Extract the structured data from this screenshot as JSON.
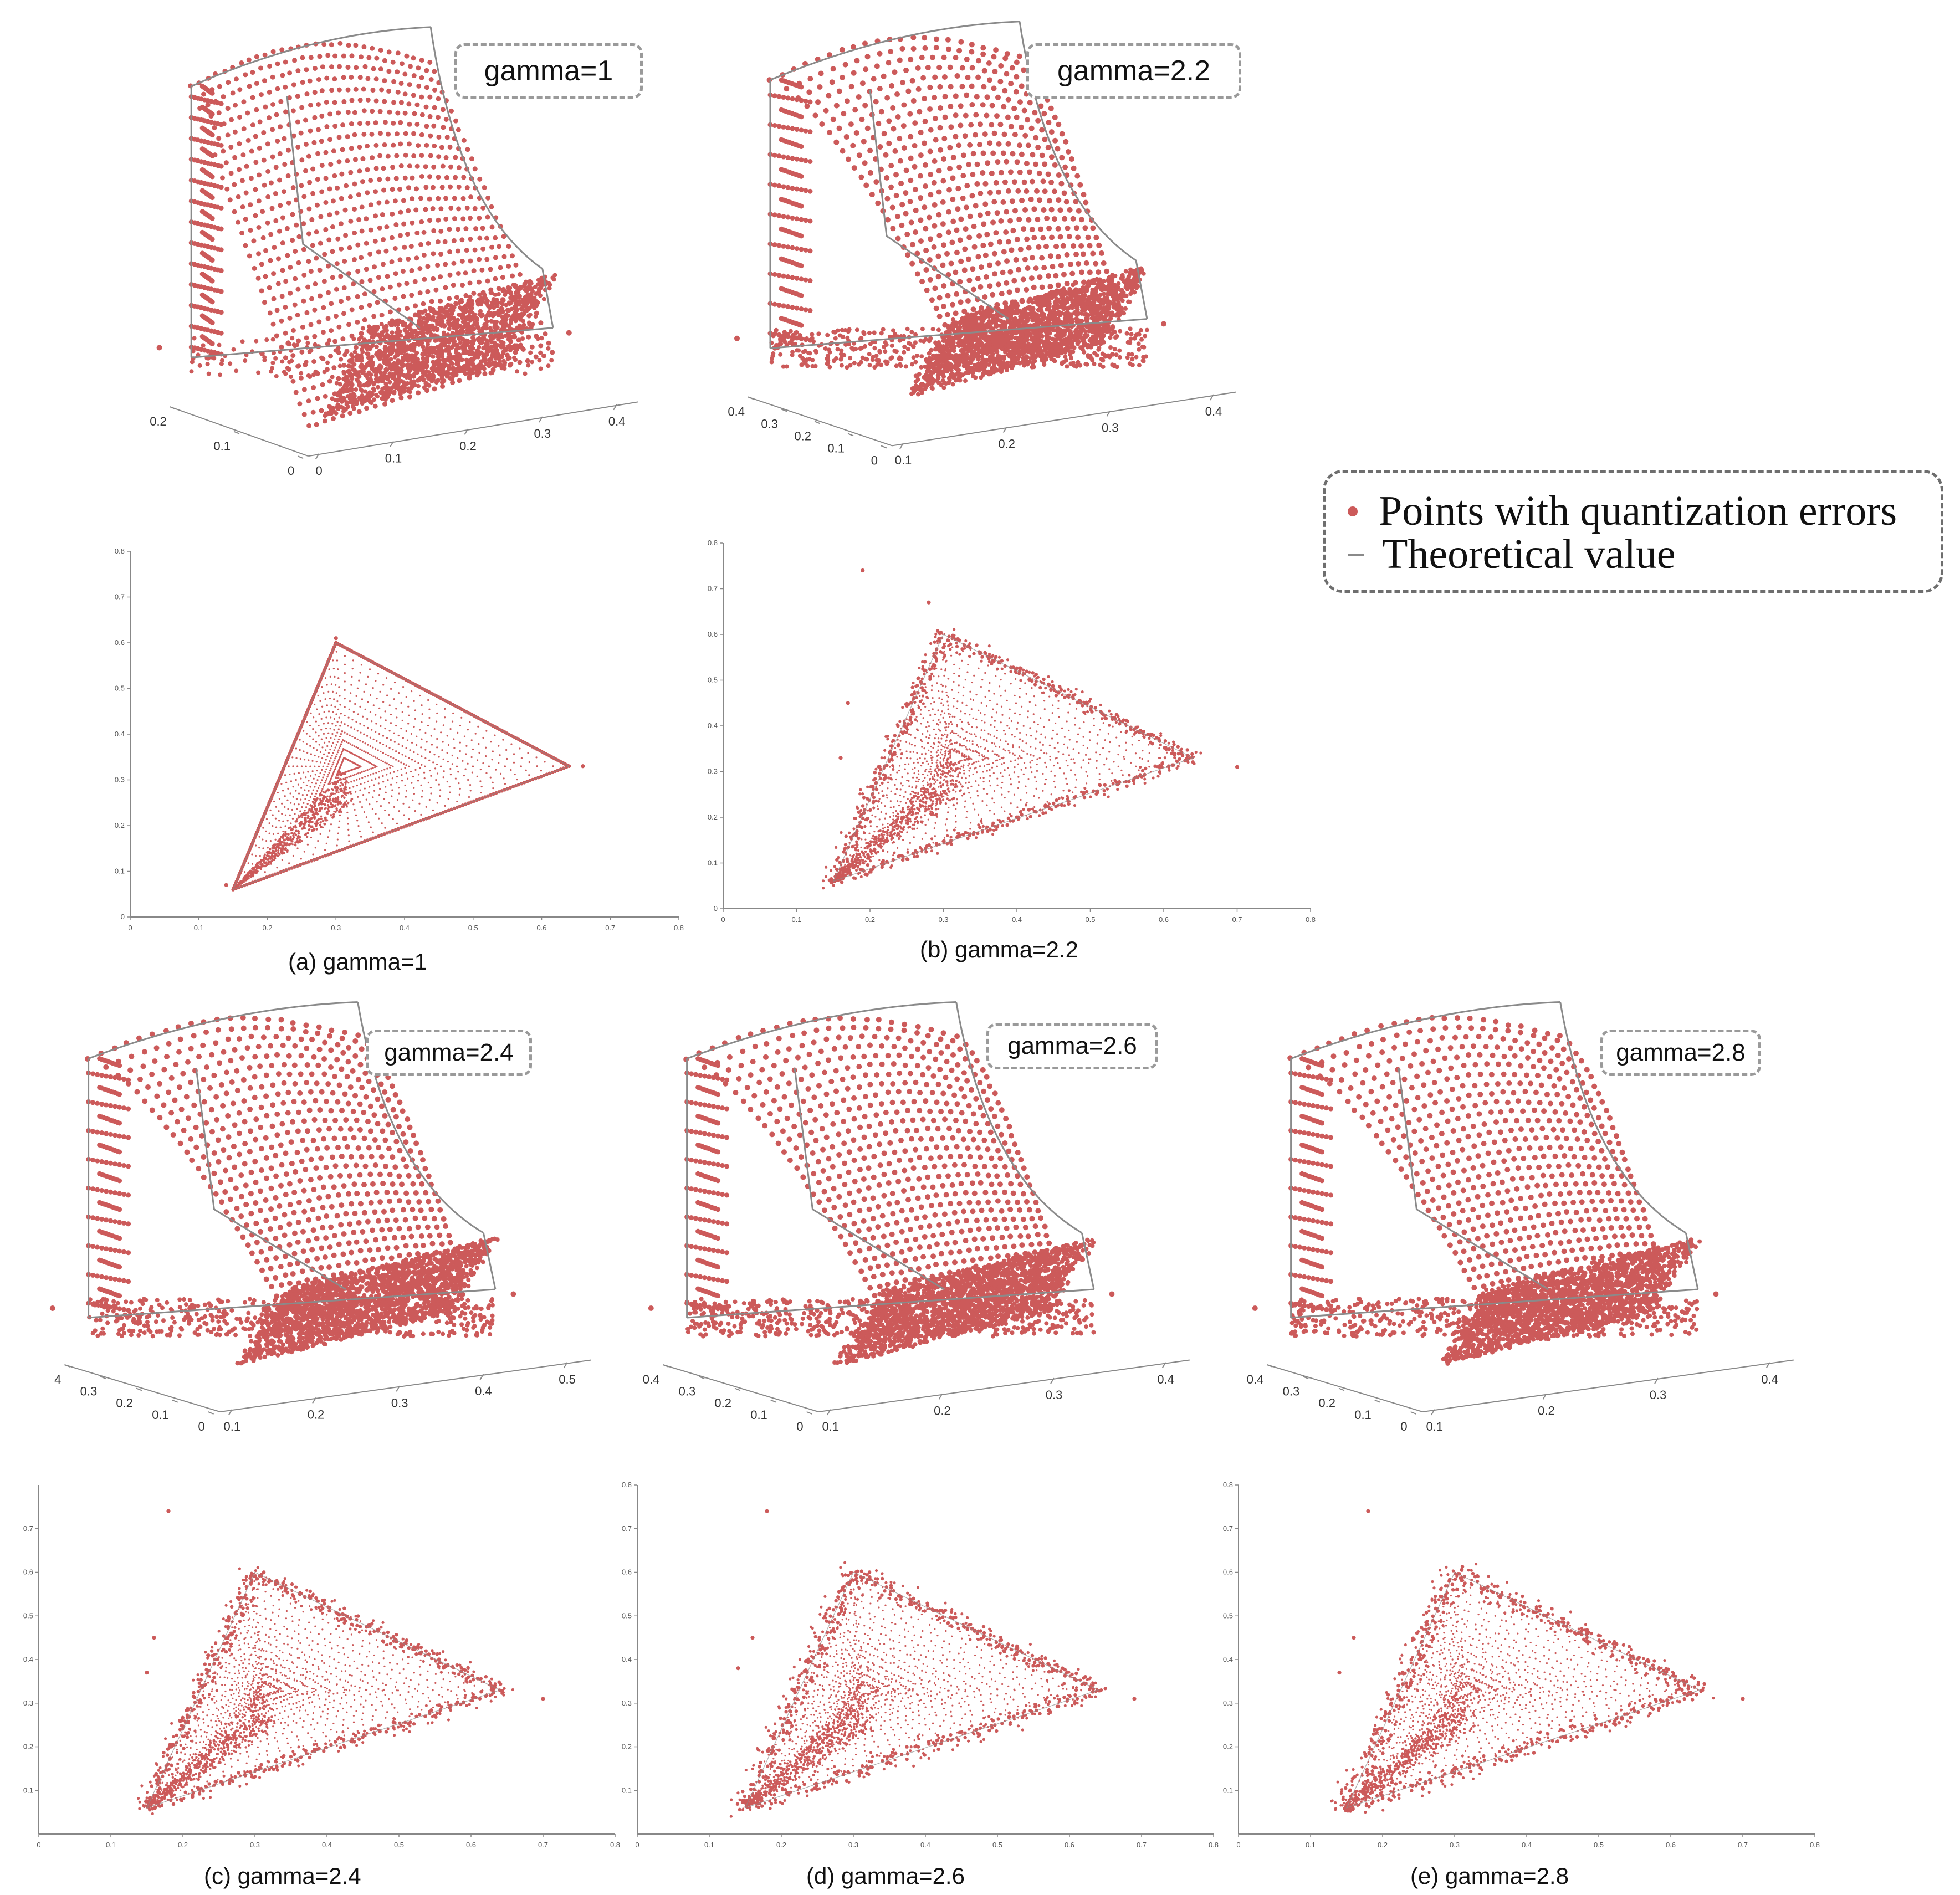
{
  "colors": {
    "points": "#cc5a5a",
    "theoretical": "#8a8a8a",
    "axis": "#888888",
    "box_border": "#9a9a9a"
  },
  "legend": {
    "points_label": "Points with quantization errors",
    "theoretical_label": "Theoretical value"
  },
  "panels": [
    {
      "id": "a",
      "gamma_label": "gamma=1",
      "caption": "(a)  gamma=1",
      "tick_3d_left": [
        "0.2",
        "0.1",
        "0"
      ],
      "tick_3d_right": [
        "0",
        "0.1",
        "0.2",
        "0.3",
        "0.4"
      ]
    },
    {
      "id": "b",
      "gamma_label": "gamma=2.2",
      "caption": "(b) gamma=2.2",
      "tick_3d_left": [
        "0.4",
        "0.3",
        "0.2",
        "0.1",
        "0"
      ],
      "tick_3d_right": [
        "0.1",
        "0.2",
        "0.3",
        "0.4"
      ]
    },
    {
      "id": "c",
      "gamma_label": "gamma=2.4",
      "caption": "(c) gamma=2.4",
      "tick_3d_left": [
        "4",
        "0.3",
        "0.2",
        "0.1",
        "0"
      ],
      "tick_3d_right": [
        "0.1",
        "0.2",
        "0.3",
        "0.4",
        "0.5"
      ]
    },
    {
      "id": "d",
      "gamma_label": "gamma=2.6",
      "caption": "(d) gamma=2.6",
      "tick_3d_left": [
        "0.4",
        "0.3",
        "0.2",
        "0.1",
        "0"
      ],
      "tick_3d_right": [
        "0.1",
        "0.2",
        "0.3",
        "0.4"
      ]
    },
    {
      "id": "e",
      "gamma_label": "gamma=2.8",
      "caption": "(e) gamma=2.8",
      "tick_3d_left": [
        "0.4",
        "0.3",
        "0.2",
        "0.1",
        "0"
      ],
      "tick_3d_right": [
        "0.1",
        "0.2",
        "0.3",
        "0.4"
      ]
    }
  ],
  "chart_data": [
    {
      "type": "scatter",
      "title": "(a)  gamma=1",
      "gamma": 1,
      "xlim": [
        0,
        0.8
      ],
      "ylim": [
        0,
        0.8
      ],
      "x_ticks": [
        "0",
        "0.1",
        "0.2",
        "0.3",
        "0.4",
        "0.5",
        "0.6",
        "0.7",
        "0.8"
      ],
      "y_ticks": [
        "0",
        "0.1",
        "0.2",
        "0.3",
        "0.4",
        "0.5",
        "0.6",
        "0.7",
        "0.8"
      ],
      "triangle": {
        "red": [
          0.64,
          0.33
        ],
        "green": [
          0.3,
          0.6
        ],
        "blue": [
          0.15,
          0.06
        ],
        "white": [
          0.3127,
          0.329
        ]
      },
      "spread": 0.0,
      "outliers": [
        [
          0.3,
          0.61
        ],
        [
          0.66,
          0.33
        ],
        [
          0.14,
          0.07
        ]
      ],
      "series": [
        {
          "name": "Points with quantization errors"
        },
        {
          "name": "Theoretical value"
        }
      ]
    },
    {
      "type": "scatter",
      "title": "(b) gamma=2.2",
      "gamma": 2.2,
      "xlim": [
        0,
        0.8
      ],
      "ylim": [
        0,
        0.8
      ],
      "x_ticks": [
        "0",
        "0.1",
        "0.2",
        "0.3",
        "0.4",
        "0.5",
        "0.6",
        "0.7",
        "0.8"
      ],
      "y_ticks": [
        "0",
        "0.1",
        "0.2",
        "0.3",
        "0.4",
        "0.5",
        "0.6",
        "0.7",
        "0.8"
      ],
      "triangle": {
        "red": [
          0.64,
          0.33
        ],
        "green": [
          0.3,
          0.6
        ],
        "blue": [
          0.15,
          0.06
        ],
        "white": [
          0.3127,
          0.329
        ]
      },
      "spread": 0.012,
      "outliers": [
        [
          0.19,
          0.74
        ],
        [
          0.28,
          0.67
        ],
        [
          0.7,
          0.31
        ],
        [
          0.16,
          0.33
        ],
        [
          0.17,
          0.45
        ]
      ],
      "series": [
        {
          "name": "Points with quantization errors"
        },
        {
          "name": "Theoretical value"
        }
      ]
    },
    {
      "type": "scatter",
      "title": "(c) gamma=2.4",
      "gamma": 2.4,
      "xlim": [
        0,
        0.8
      ],
      "ylim": [
        0,
        0.8
      ],
      "x_ticks": [
        "0",
        "0.1",
        "0.2",
        "0.3",
        "0.4",
        "0.5",
        "0.6",
        "0.7",
        "0.8"
      ],
      "y_ticks": [
        "0.1",
        "0.2",
        "0.3",
        "0.4",
        "0.5",
        "0.6",
        "0.7"
      ],
      "triangle": {
        "red": [
          0.64,
          0.33
        ],
        "green": [
          0.3,
          0.6
        ],
        "blue": [
          0.15,
          0.06
        ],
        "white": [
          0.3127,
          0.329
        ]
      },
      "spread": 0.015,
      "outliers": [
        [
          0.18,
          0.74
        ],
        [
          0.16,
          0.45
        ],
        [
          0.7,
          0.31
        ],
        [
          0.15,
          0.37
        ]
      ],
      "series": [
        {
          "name": "Points with quantization errors"
        },
        {
          "name": "Theoretical value"
        }
      ]
    },
    {
      "type": "scatter",
      "title": "(d) gamma=2.6",
      "gamma": 2.6,
      "xlim": [
        0,
        0.8
      ],
      "ylim": [
        0,
        0.8
      ],
      "x_ticks": [
        "0",
        "0.1",
        "0.2",
        "0.3",
        "0.4",
        "0.5",
        "0.6",
        "0.7",
        "0.8"
      ],
      "y_ticks": [
        "0.1",
        "0.2",
        "0.3",
        "0.4",
        "0.5",
        "0.6",
        "0.7",
        "0.8"
      ],
      "triangle": {
        "red": [
          0.64,
          0.33
        ],
        "green": [
          0.3,
          0.6
        ],
        "blue": [
          0.15,
          0.06
        ],
        "white": [
          0.3127,
          0.329
        ]
      },
      "spread": 0.017,
      "outliers": [
        [
          0.18,
          0.74
        ],
        [
          0.16,
          0.45
        ],
        [
          0.69,
          0.31
        ],
        [
          0.14,
          0.38
        ]
      ],
      "series": [
        {
          "name": "Points with quantization errors"
        },
        {
          "name": "Theoretical value"
        }
      ]
    },
    {
      "type": "scatter",
      "title": "(e) gamma=2.8",
      "gamma": 2.8,
      "xlim": [
        0,
        0.8
      ],
      "ylim": [
        0,
        0.8
      ],
      "x_ticks": [
        "0",
        "0.1",
        "0.2",
        "0.3",
        "0.4",
        "0.5",
        "0.6",
        "0.7",
        "0.8"
      ],
      "y_ticks": [
        "0.1",
        "0.2",
        "0.3",
        "0.4",
        "0.5",
        "0.6",
        "0.7",
        "0.8"
      ],
      "triangle": {
        "red": [
          0.64,
          0.33
        ],
        "green": [
          0.3,
          0.6
        ],
        "blue": [
          0.15,
          0.06
        ],
        "white": [
          0.3127,
          0.329
        ]
      },
      "spread": 0.019,
      "outliers": [
        [
          0.18,
          0.74
        ],
        [
          0.16,
          0.45
        ],
        [
          0.7,
          0.31
        ],
        [
          0.14,
          0.37
        ]
      ],
      "series": [
        {
          "name": "Points with quantization errors"
        },
        {
          "name": "Theoretical value"
        }
      ]
    }
  ]
}
